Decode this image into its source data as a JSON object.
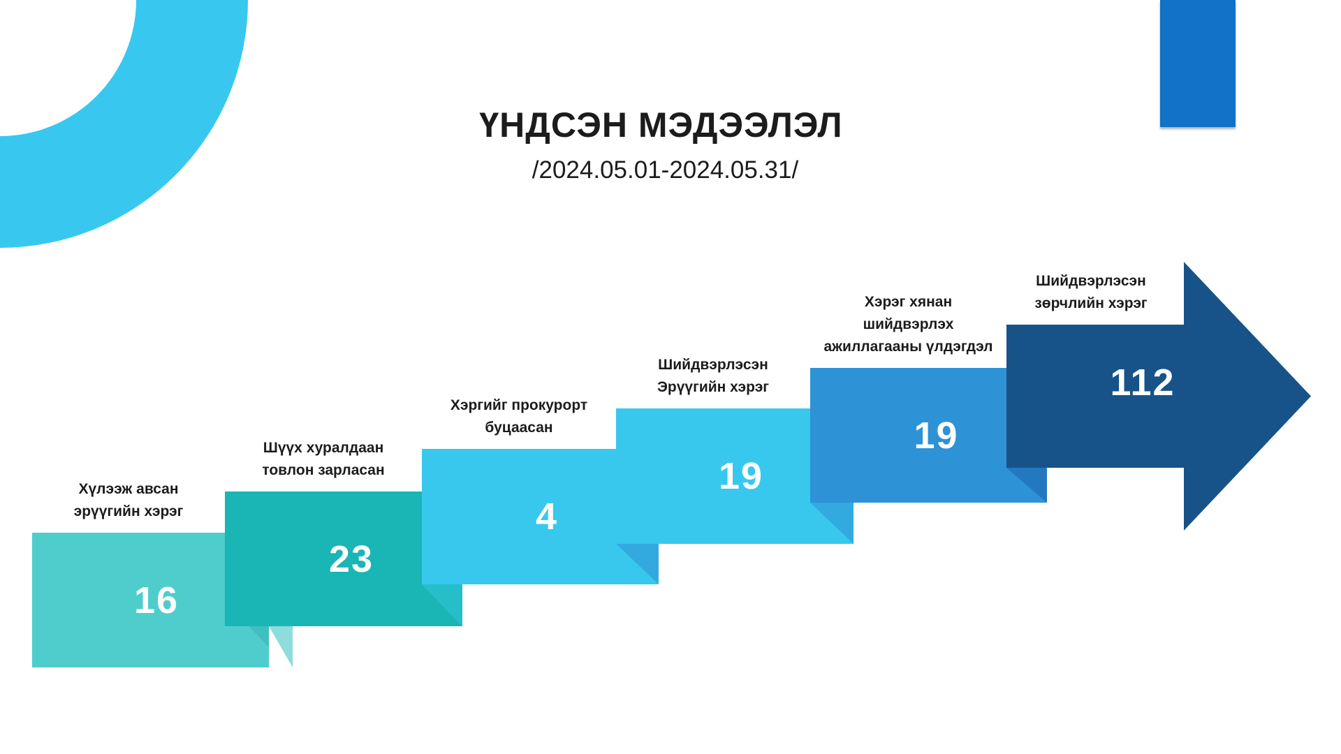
{
  "title": "ҮНДСЭН МЭДЭЭЛЭЛ",
  "subtitle": "/2024.05.01-2024.05.31/",
  "colors": {
    "ring": "#38c8ef",
    "corner_rect": "#1172c6"
  },
  "steps": [
    {
      "label_lines": [
        "Хүлээж авсан",
        "эрүүгийн хэрэг"
      ],
      "value": "16",
      "color": "#4fcdcc",
      "fold": "#8fdcdc"
    },
    {
      "label_lines": [
        "Шүүх хуралдаан",
        "товлон зарласан"
      ],
      "value": "23",
      "color": "#1ab5b5",
      "fold": "#26bfc9"
    },
    {
      "label_lines": [
        "Хэргийг прокурорт",
        "буцаасан"
      ],
      "value": "4",
      "color": "#38c8ee",
      "fold": "#32aadf"
    },
    {
      "label_lines": [
        "Шийдвэрлэсэн",
        "Эрүүгийн хэрэг"
      ],
      "value": "19",
      "color": "#38c8ee",
      "fold": "#32aadf"
    },
    {
      "label_lines": [
        "Хэрэг хянан",
        "шийдвэрлэх",
        "ажиллагааны үлдэгдэл"
      ],
      "value": "19",
      "color": "#2d92d6",
      "fold": "#2379c0"
    },
    {
      "label_lines": [
        "Шийдвэрлэсэн",
        "зөрчлийн хэрэг"
      ],
      "value": "112",
      "color": "#175389"
    }
  ]
}
